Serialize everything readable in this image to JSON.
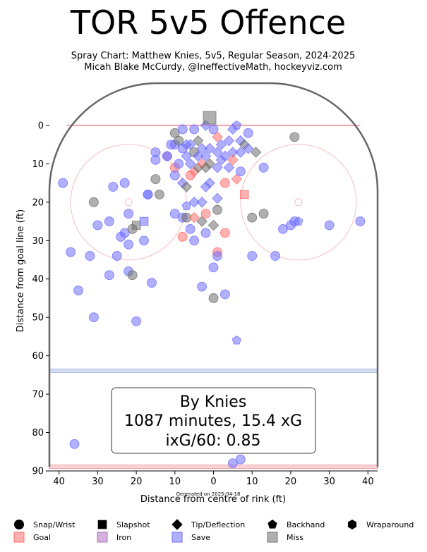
{
  "header": {
    "title": "TOR 5v5 Offence",
    "subtitle_line1": "Spray Chart: Matthew Knies, 5v5, Regular Season, 2024-2025",
    "subtitle_line2": "Micah Blake McCurdy, @IneffectiveMath, hockeyviz.com"
  },
  "footer": {
    "generated": "Generated on 2025-04-18"
  },
  "annotation": {
    "line1": "By Knies",
    "line2": "1087 minutes, 15.4 xG",
    "line3": "ixG/60: 0.85"
  },
  "colors": {
    "goal": "#ff7070",
    "iron": "#b070c0",
    "save": "#7070ff",
    "miss": "#707070",
    "rink_line": "#666666",
    "goal_line": "#f4a0a8",
    "blue_line": "#a8b8e0",
    "faceoff_circle": "#f6c0c0"
  },
  "chart_data": {
    "type": "scatter",
    "title": "TOR 5v5 Offence",
    "xlabel": "Distance from centre of rink (ft)",
    "ylabel": "Distance from goal line (ft)",
    "xlim": [
      42.5,
      -42.5
    ],
    "ylim": [
      90,
      -11
    ],
    "x_ticks": [
      40,
      30,
      20,
      10,
      0,
      -10,
      -20,
      -30,
      -40
    ],
    "x_tick_labels": [
      "40",
      "30",
      "20",
      "10",
      "0",
      "10",
      "20",
      "30",
      "40"
    ],
    "y_ticks": [
      0,
      10,
      20,
      30,
      40,
      50,
      60,
      70,
      80,
      90
    ],
    "y_tick_labels": [
      "0",
      "10",
      "20",
      "30",
      "40",
      "50",
      "60",
      "70",
      "80",
      "90"
    ],
    "legend": {
      "placement": "bottom",
      "shapes": [
        {
          "marker": "circle",
          "label": "Snap/Wrist"
        },
        {
          "marker": "square",
          "label": "Slapshot"
        },
        {
          "marker": "diamond",
          "label": "Tip/Deflection"
        },
        {
          "marker": "pentagon",
          "label": "Backhand"
        },
        {
          "marker": "hexagon",
          "label": "Wraparound"
        }
      ],
      "outcomes": [
        {
          "outcome": "goal",
          "label": "Goal"
        },
        {
          "outcome": "iron",
          "label": "Iron"
        },
        {
          "outcome": "save",
          "label": "Save"
        },
        {
          "outcome": "miss",
          "label": "Miss"
        }
      ]
    },
    "shots": [
      {
        "x": 39,
        "y": 15,
        "marker": "circle",
        "outcome": "save"
      },
      {
        "x": 37,
        "y": 33,
        "marker": "circle",
        "outcome": "save"
      },
      {
        "x": 35,
        "y": 43,
        "marker": "circle",
        "outcome": "save"
      },
      {
        "x": 32,
        "y": 34,
        "marker": "circle",
        "outcome": "save"
      },
      {
        "x": 31,
        "y": 20,
        "marker": "circle",
        "outcome": "miss"
      },
      {
        "x": 30,
        "y": 26,
        "marker": "circle",
        "outcome": "save"
      },
      {
        "x": 31,
        "y": 50,
        "marker": "circle",
        "outcome": "save"
      },
      {
        "x": 27,
        "y": 25,
        "marker": "circle",
        "outcome": "save"
      },
      {
        "x": 27,
        "y": 39,
        "marker": "circle",
        "outcome": "save"
      },
      {
        "x": 26,
        "y": 16,
        "marker": "circle",
        "outcome": "save"
      },
      {
        "x": 25,
        "y": 34,
        "marker": "circle",
        "outcome": "save"
      },
      {
        "x": 24,
        "y": 29,
        "marker": "circle",
        "outcome": "save"
      },
      {
        "x": 23,
        "y": 15,
        "marker": "circle",
        "outcome": "save"
      },
      {
        "x": 23,
        "y": 28,
        "marker": "circle",
        "outcome": "save"
      },
      {
        "x": 22,
        "y": 23,
        "marker": "circle",
        "outcome": "save"
      },
      {
        "x": 22,
        "y": 31,
        "marker": "circle",
        "outcome": "save"
      },
      {
        "x": 22,
        "y": 38,
        "marker": "circle",
        "outcome": "save"
      },
      {
        "x": 21,
        "y": 39,
        "marker": "circle",
        "outcome": "miss"
      },
      {
        "x": 20,
        "y": 51,
        "marker": "circle",
        "outcome": "save"
      },
      {
        "x": 21,
        "y": 27,
        "marker": "circle",
        "outcome": "miss"
      },
      {
        "x": 20,
        "y": 26,
        "marker": "square",
        "outcome": "miss"
      },
      {
        "x": 18,
        "y": 25,
        "marker": "square",
        "outcome": "save"
      },
      {
        "x": 18,
        "y": 30,
        "marker": "circle",
        "outcome": "save"
      },
      {
        "x": 17,
        "y": 18,
        "marker": "circle",
        "outcome": "save"
      },
      {
        "x": 17,
        "y": 18,
        "marker": "circle",
        "outcome": "save"
      },
      {
        "x": 16,
        "y": 41,
        "marker": "circle",
        "outcome": "save"
      },
      {
        "x": 15,
        "y": 7,
        "marker": "circle",
        "outcome": "save"
      },
      {
        "x": 15,
        "y": 9,
        "marker": "circle",
        "outcome": "save"
      },
      {
        "x": 15,
        "y": 14,
        "marker": "circle",
        "outcome": "miss"
      },
      {
        "x": 14,
        "y": 18,
        "marker": "circle",
        "outcome": "miss"
      },
      {
        "x": 12,
        "y": 8,
        "marker": "diamond",
        "outcome": "iron"
      },
      {
        "x": 12,
        "y": 8,
        "marker": "circle",
        "outcome": "save"
      },
      {
        "x": 11,
        "y": 5,
        "marker": "circle",
        "outcome": "save"
      },
      {
        "x": 10,
        "y": 2,
        "marker": "circle",
        "outcome": "miss"
      },
      {
        "x": 10,
        "y": 5,
        "marker": "circle",
        "outcome": "save"
      },
      {
        "x": 10,
        "y": 11,
        "marker": "circle",
        "outcome": "goal"
      },
      {
        "x": 10,
        "y": 13,
        "marker": "circle",
        "outcome": "save"
      },
      {
        "x": 10,
        "y": 23,
        "marker": "circle",
        "outcome": "save"
      },
      {
        "x": 9,
        "y": 4,
        "marker": "circle",
        "outcome": "miss"
      },
      {
        "x": 9,
        "y": 10,
        "marker": "circle",
        "outcome": "save"
      },
      {
        "x": 8,
        "y": 1,
        "marker": "circle",
        "outcome": "save"
      },
      {
        "x": 8,
        "y": 6,
        "marker": "circle",
        "outcome": "save"
      },
      {
        "x": 8,
        "y": 15,
        "marker": "diamond",
        "outcome": "save"
      },
      {
        "x": 8,
        "y": 24,
        "marker": "circle",
        "outcome": "save"
      },
      {
        "x": 8,
        "y": 29,
        "marker": "circle",
        "outcome": "goal"
      },
      {
        "x": 7,
        "y": 5,
        "marker": "diamond",
        "outcome": "save"
      },
      {
        "x": 7,
        "y": 8,
        "marker": "diamond",
        "outcome": "save"
      },
      {
        "x": 7,
        "y": 16,
        "marker": "diamond",
        "outcome": "miss"
      },
      {
        "x": 7,
        "y": 21,
        "marker": "pentagon",
        "outcome": "save"
      },
      {
        "x": 7,
        "y": 24,
        "marker": "circle",
        "outcome": "miss"
      },
      {
        "x": 6,
        "y": 5,
        "marker": "diamond",
        "outcome": "save"
      },
      {
        "x": 6,
        "y": 10,
        "marker": "diamond",
        "outcome": "save"
      },
      {
        "x": 6,
        "y": 13,
        "marker": "circle",
        "outcome": "goal"
      },
      {
        "x": 6,
        "y": 27,
        "marker": "circle",
        "outcome": "save"
      },
      {
        "x": 5,
        "y": 1,
        "marker": "circle",
        "outcome": "save"
      },
      {
        "x": 5,
        "y": 7,
        "marker": "circle",
        "outcome": "miss"
      },
      {
        "x": 5,
        "y": 12,
        "marker": "diamond",
        "outcome": "goal"
      },
      {
        "x": 5,
        "y": 20,
        "marker": "diamond",
        "outcome": "save"
      },
      {
        "x": 5,
        "y": 24,
        "marker": "diamond",
        "outcome": "goal"
      },
      {
        "x": 5,
        "y": 30,
        "marker": "circle",
        "outcome": "save"
      },
      {
        "x": 4,
        "y": 4,
        "marker": "diamond",
        "outcome": "miss"
      },
      {
        "x": 4,
        "y": 8,
        "marker": "diamond",
        "outcome": "save"
      },
      {
        "x": 4,
        "y": 11,
        "marker": "diamond",
        "outcome": "miss"
      },
      {
        "x": 3,
        "y": 6,
        "marker": "diamond",
        "outcome": "save"
      },
      {
        "x": 3,
        "y": 10,
        "marker": "diamond",
        "outcome": "goal"
      },
      {
        "x": 3,
        "y": 20,
        "marker": "diamond",
        "outcome": "save"
      },
      {
        "x": 3,
        "y": 25,
        "marker": "diamond",
        "outcome": "miss"
      },
      {
        "x": 3,
        "y": 42,
        "marker": "circle",
        "outcome": "save"
      },
      {
        "x": 2,
        "y": 0,
        "marker": "diamond",
        "outcome": "save"
      },
      {
        "x": 2,
        "y": 8,
        "marker": "diamond",
        "outcome": "save"
      },
      {
        "x": 2,
        "y": 11,
        "marker": "diamond",
        "outcome": "miss"
      },
      {
        "x": 2,
        "y": 16,
        "marker": "diamond",
        "outcome": "save"
      },
      {
        "x": 2,
        "y": 23,
        "marker": "circle",
        "outcome": "goal"
      },
      {
        "x": 2,
        "y": 28,
        "marker": "circle",
        "outcome": "save"
      },
      {
        "x": 1,
        "y": -2,
        "marker": "square",
        "outcome": "miss"
      },
      {
        "x": 1,
        "y": 6,
        "marker": "diamond",
        "outcome": "save"
      },
      {
        "x": 1,
        "y": 10,
        "marker": "diamond",
        "outcome": "miss"
      },
      {
        "x": 1,
        "y": 15,
        "marker": "diamond",
        "outcome": "save"
      },
      {
        "x": 0,
        "y": 1,
        "marker": "circle",
        "outcome": "save"
      },
      {
        "x": 0,
        "y": 26,
        "marker": "diamond",
        "outcome": "miss"
      },
      {
        "x": 0,
        "y": 37,
        "marker": "circle",
        "outcome": "save"
      },
      {
        "x": 0,
        "y": 45,
        "marker": "circle",
        "outcome": "miss"
      },
      {
        "x": -1,
        "y": 3,
        "marker": "diamond",
        "outcome": "goal"
      },
      {
        "x": -1,
        "y": 7,
        "marker": "diamond",
        "outcome": "save"
      },
      {
        "x": -1,
        "y": 11,
        "marker": "diamond",
        "outcome": "save"
      },
      {
        "x": -1,
        "y": 19,
        "marker": "diamond",
        "outcome": "save"
      },
      {
        "x": -1,
        "y": 22,
        "marker": "circle",
        "outcome": "miss"
      },
      {
        "x": -1,
        "y": 33,
        "marker": "circle",
        "outcome": "goal"
      },
      {
        "x": -1,
        "y": 34,
        "marker": "circle",
        "outcome": "save"
      },
      {
        "x": -2,
        "y": 5,
        "marker": "diamond",
        "outcome": "save"
      },
      {
        "x": -2,
        "y": 9,
        "marker": "diamond",
        "outcome": "save"
      },
      {
        "x": -3,
        "y": 8,
        "marker": "diamond",
        "outcome": "save"
      },
      {
        "x": -3,
        "y": 15,
        "marker": "circle",
        "outcome": "goal"
      },
      {
        "x": -3,
        "y": 28,
        "marker": "circle",
        "outcome": "goal"
      },
      {
        "x": -3,
        "y": 44,
        "marker": "circle",
        "outcome": "save"
      },
      {
        "x": -4,
        "y": 4,
        "marker": "diamond",
        "outcome": "save"
      },
      {
        "x": -4,
        "y": 11,
        "marker": "diamond",
        "outcome": "save"
      },
      {
        "x": -5,
        "y": 1,
        "marker": "diamond",
        "outcome": "save"
      },
      {
        "x": -5,
        "y": 7,
        "marker": "diamond",
        "outcome": "save"
      },
      {
        "x": -5,
        "y": 9,
        "marker": "diamond",
        "outcome": "goal"
      },
      {
        "x": -6,
        "y": 0,
        "marker": "pentagon",
        "outcome": "save"
      },
      {
        "x": -6,
        "y": 14,
        "marker": "diamond",
        "outcome": "goal"
      },
      {
        "x": -6,
        "y": 56,
        "marker": "pentagon",
        "outcome": "save"
      },
      {
        "x": -7,
        "y": 4,
        "marker": "diamond",
        "outcome": "save"
      },
      {
        "x": -7,
        "y": 7,
        "marker": "diamond",
        "outcome": "save"
      },
      {
        "x": -7,
        "y": 12,
        "marker": "circle",
        "outcome": "save"
      },
      {
        "x": -7,
        "y": 87,
        "marker": "circle",
        "outcome": "save"
      },
      {
        "x": -8,
        "y": 5,
        "marker": "diamond",
        "outcome": "miss"
      },
      {
        "x": -8,
        "y": 18,
        "marker": "square",
        "outcome": "goal"
      },
      {
        "x": -9,
        "y": 2,
        "marker": "circle",
        "outcome": "save"
      },
      {
        "x": -9,
        "y": 6,
        "marker": "diamond",
        "outcome": "save"
      },
      {
        "x": -10,
        "y": 24,
        "marker": "circle",
        "outcome": "miss"
      },
      {
        "x": -10,
        "y": 34,
        "marker": "circle",
        "outcome": "save"
      },
      {
        "x": -11,
        "y": 7,
        "marker": "diamond",
        "outcome": "miss"
      },
      {
        "x": -13,
        "y": 11,
        "marker": "circle",
        "outcome": "save"
      },
      {
        "x": -13,
        "y": 23,
        "marker": "circle",
        "outcome": "miss"
      },
      {
        "x": -16,
        "y": 34,
        "marker": "circle",
        "outcome": "save"
      },
      {
        "x": -18,
        "y": 27,
        "marker": "circle",
        "outcome": "save"
      },
      {
        "x": -20,
        "y": 26,
        "marker": "circle",
        "outcome": "save"
      },
      {
        "x": -21,
        "y": 25,
        "marker": "circle",
        "outcome": "save"
      },
      {
        "x": -21,
        "y": 3,
        "marker": "circle",
        "outcome": "miss"
      },
      {
        "x": -22,
        "y": 25,
        "marker": "pentagon",
        "outcome": "save"
      },
      {
        "x": -30,
        "y": 26,
        "marker": "circle",
        "outcome": "save"
      },
      {
        "x": -38,
        "y": 25,
        "marker": "circle",
        "outcome": "save"
      },
      {
        "x": 36,
        "y": 83,
        "marker": "circle",
        "outcome": "save"
      },
      {
        "x": -5,
        "y": 88,
        "marker": "circle",
        "outcome": "save"
      }
    ]
  }
}
